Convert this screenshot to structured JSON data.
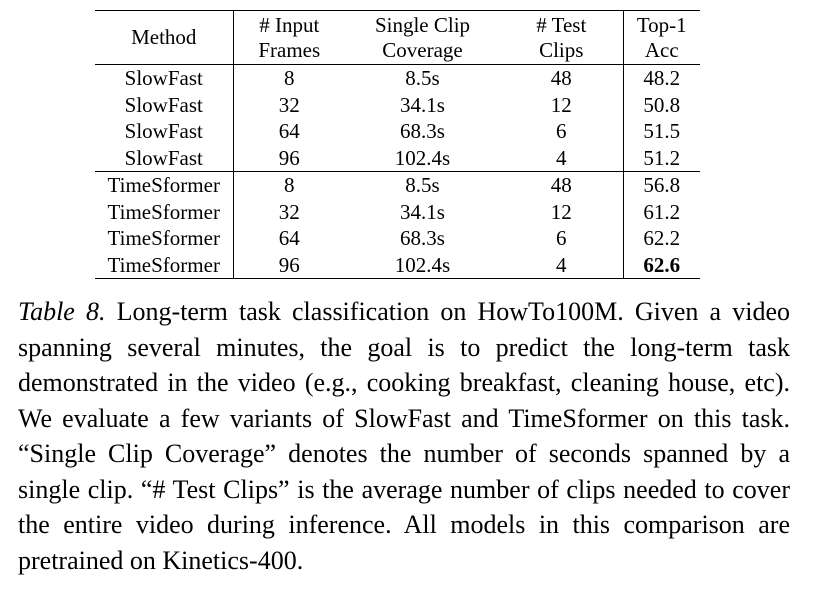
{
  "table": {
    "header": [
      [
        "Method"
      ],
      [
        "# Input",
        "Frames"
      ],
      [
        "Single Clip",
        "Coverage"
      ],
      [
        "# Test",
        "Clips"
      ],
      [
        "Top-1",
        "Acc"
      ]
    ],
    "groups": [
      [
        [
          "SlowFast",
          "8",
          "8.5s",
          "48",
          "48.2"
        ],
        [
          "SlowFast",
          "32",
          "34.1s",
          "12",
          "50.8"
        ],
        [
          "SlowFast",
          "64",
          "68.3s",
          "6",
          "51.5"
        ],
        [
          "SlowFast",
          "96",
          "102.4s",
          "4",
          "51.2"
        ]
      ],
      [
        [
          "TimeSformer",
          "8",
          "8.5s",
          "48",
          "56.8"
        ],
        [
          "TimeSformer",
          "32",
          "34.1s",
          "12",
          "61.2"
        ],
        [
          "TimeSformer",
          "64",
          "68.3s",
          "6",
          "62.2"
        ],
        [
          "TimeSformer",
          "96",
          "102.4s",
          "4",
          "62.6"
        ]
      ]
    ]
  },
  "caption": {
    "label": "Table 8.",
    "text": "Long-term task classification on HowTo100M. Given a video spanning several minutes, the goal is to predict the long-term task demonstrated in the video (e.g., cooking breakfast, cleaning house, etc). We evaluate a few variants of SlowFast and TimeSformer on this task. “Single Clip Coverage” denotes the number of seconds spanned by a single clip. “# Test Clips” is the average number of clips needed to cover the entire video during inference. All models in this comparison are pretrained on Kinetics-400."
  }
}
